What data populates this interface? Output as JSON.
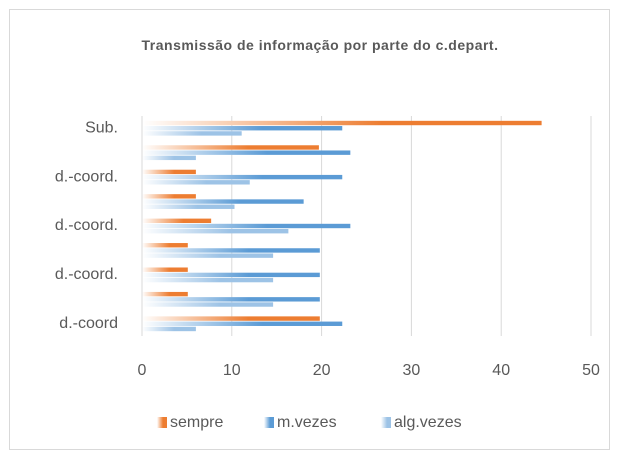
{
  "chart_data": {
    "type": "hbar",
    "title": "Transmissão de informação por parte do c.depart.",
    "categories": [
      "Sub.",
      null,
      "d.-coord.",
      null,
      "d.-coord.",
      null,
      "d.-coord.",
      null,
      "d.-coord"
    ],
    "series": [
      {
        "name": "sempre",
        "color": "#ed7d31",
        "values": [
          44.5,
          19.7,
          6,
          6,
          7.7,
          5.1,
          5.1,
          5.1,
          19.8
        ]
      },
      {
        "name": "m.vezes",
        "color": "#5b9bd5",
        "values": [
          22.3,
          23.2,
          22.3,
          18,
          23.2,
          19.8,
          19.8,
          19.8,
          22.3
        ]
      },
      {
        "name": "alg.vezes",
        "color": "#9dc3e6",
        "values": [
          11.1,
          6,
          12,
          10.3,
          16.3,
          14.6,
          14.6,
          14.6,
          6
        ]
      }
    ],
    "xlim": [
      0,
      50
    ],
    "xticks": [
      0,
      10,
      20,
      30,
      40,
      50
    ],
    "grid": true,
    "legend": "bottom"
  }
}
